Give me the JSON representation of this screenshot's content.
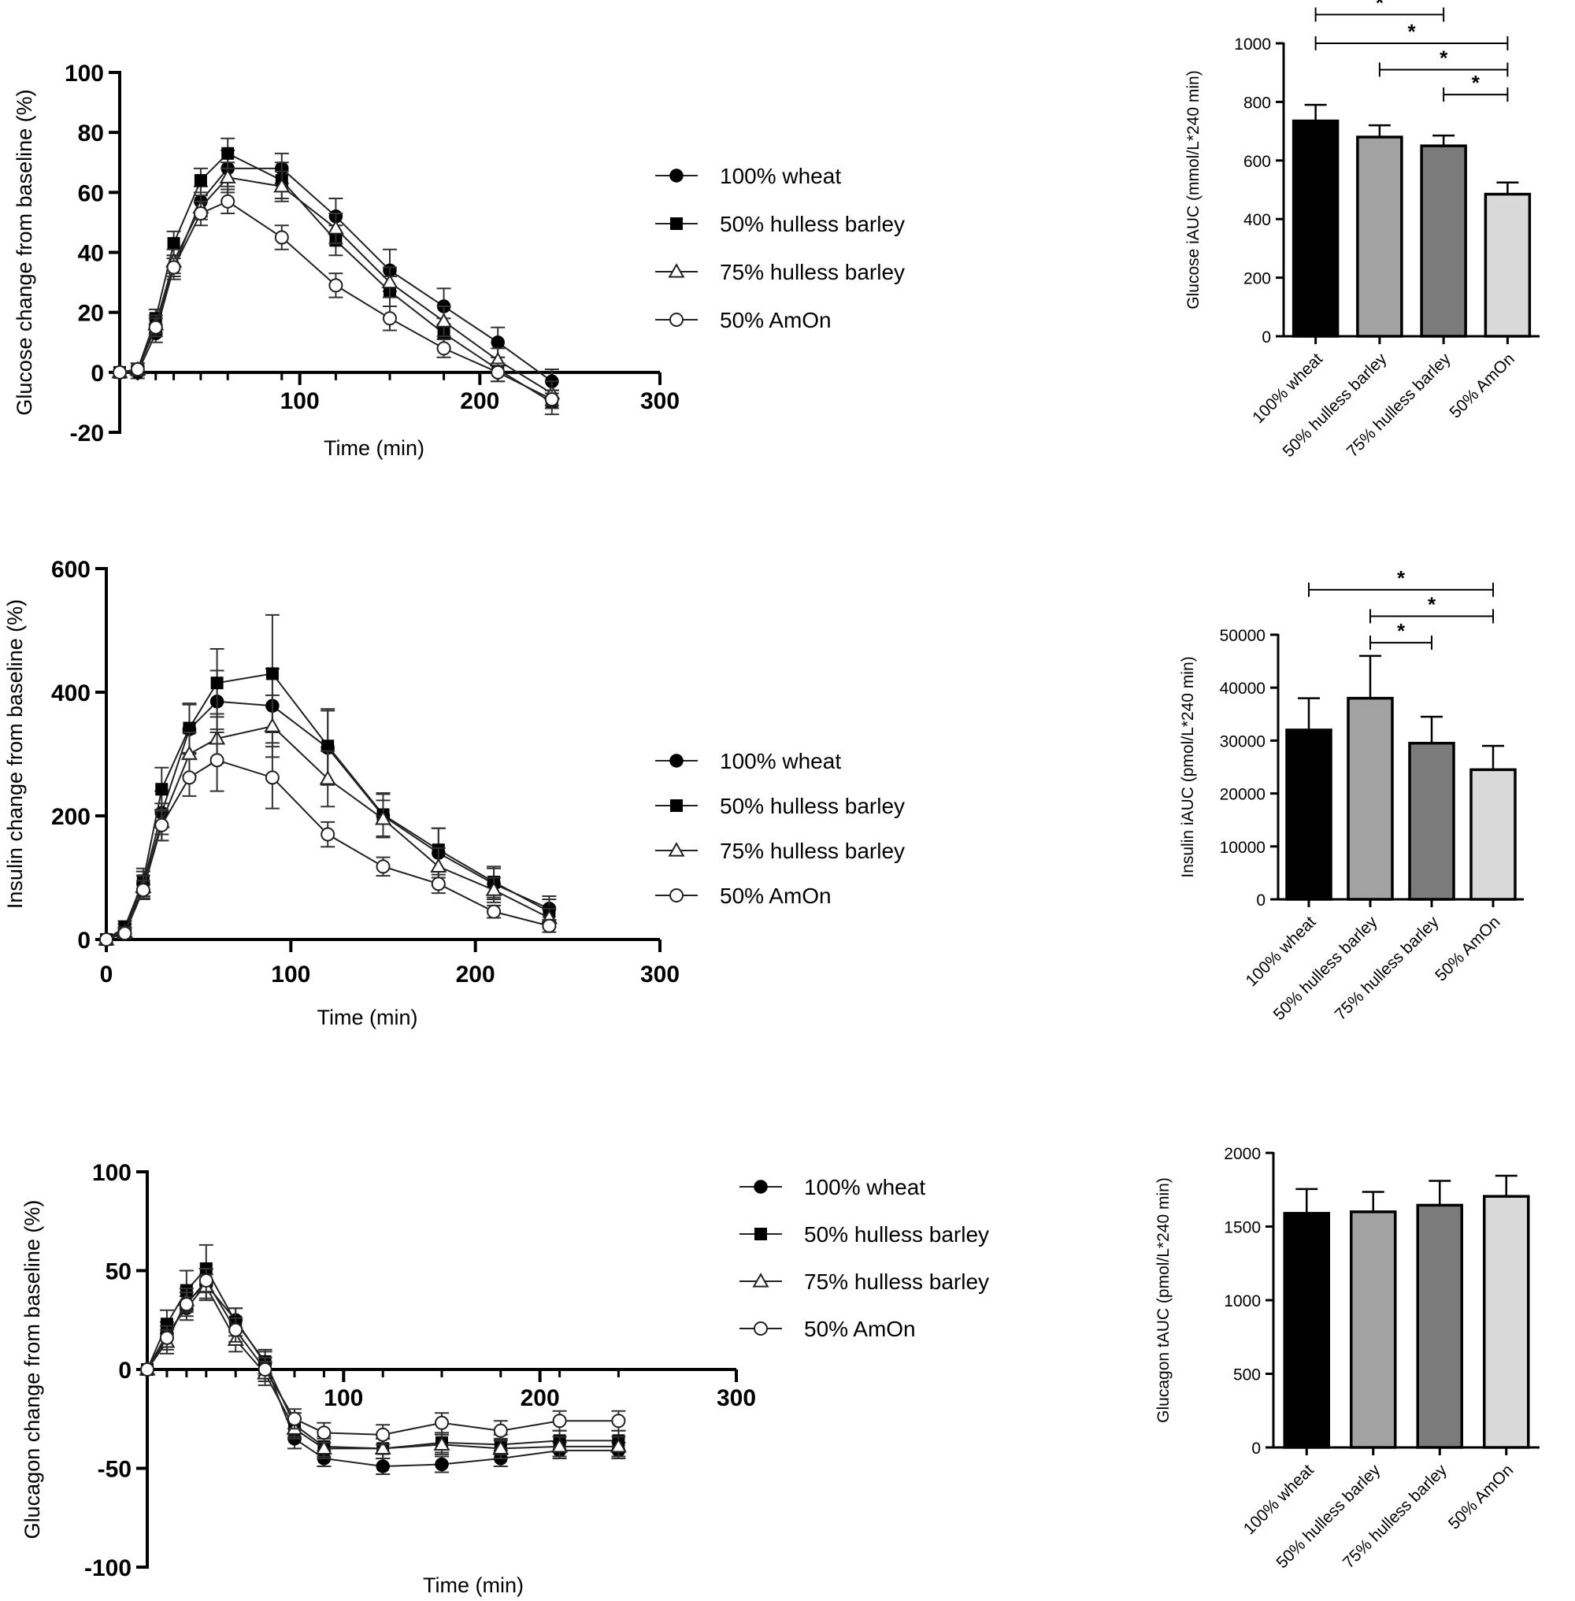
{
  "chart_data": [
    {
      "id": "glucose-line",
      "type": "line",
      "ylabel": "Glucose change from baseline (%)",
      "xlabel": "Time (min)",
      "xlim": [
        0,
        300
      ],
      "ylim": [
        -20,
        100
      ],
      "xticks": [
        100,
        200,
        300
      ],
      "xticks_labeled": [
        100,
        200,
        300
      ],
      "xminorticks": [
        10,
        20,
        30,
        45,
        60,
        90,
        120,
        150,
        180,
        210,
        240
      ],
      "yticks": [
        -20,
        0,
        20,
        40,
        60,
        80,
        100
      ],
      "x_axis_at": 0,
      "x": [
        0,
        10,
        20,
        30,
        45,
        60,
        90,
        120,
        150,
        180,
        210,
        240
      ],
      "series": [
        {
          "name": "100% wheat",
          "marker": "circle-filled",
          "values": [
            0,
            0,
            13,
            35,
            57,
            68,
            68,
            52,
            34,
            22,
            10,
            -3
          ],
          "errors": [
            0,
            2,
            3,
            4,
            5,
            6,
            5,
            6,
            7,
            6,
            5,
            4
          ]
        },
        {
          "name": "50% hulless barley",
          "marker": "square-filled",
          "values": [
            0,
            1,
            18,
            43,
            64,
            73,
            64,
            44,
            27,
            13,
            1,
            -10
          ],
          "errors": [
            0,
            2,
            3,
            4,
            4,
            5,
            6,
            5,
            5,
            5,
            4,
            4
          ]
        },
        {
          "name": "75% hulless barley",
          "marker": "triangle-open",
          "values": [
            0,
            1,
            16,
            37,
            55,
            65,
            62,
            48,
            30,
            17,
            4,
            -7
          ],
          "errors": [
            0,
            2,
            3,
            4,
            4,
            5,
            5,
            5,
            5,
            5,
            4,
            4
          ]
        },
        {
          "name": "50% AmOn",
          "marker": "circle-open",
          "values": [
            0,
            1,
            15,
            35,
            53,
            57,
            45,
            29,
            18,
            8,
            0,
            -9
          ],
          "errors": [
            0,
            2,
            3,
            3,
            4,
            4,
            4,
            4,
            4,
            3,
            3,
            3
          ]
        }
      ]
    },
    {
      "id": "glucose-bar",
      "type": "bar",
      "ylabel": "Glucose iAUC (mmol/L*240 min)",
      "categories": [
        "100% wheat",
        "50% hulless barley",
        "75% hulless barley",
        "50% AmOn"
      ],
      "values": [
        735,
        680,
        650,
        485
      ],
      "errors": [
        55,
        40,
        35,
        40
      ],
      "colors": [
        "#000000",
        "#a2a2a2",
        "#7b7b7b",
        "#d9d9d9"
      ],
      "ylim": [
        0,
        1000
      ],
      "yticks": [
        0,
        200,
        400,
        600,
        800,
        1000
      ],
      "significance": [
        {
          "from": 0,
          "to": 2,
          "label": "*",
          "level": 1098
        },
        {
          "from": 0,
          "to": 3,
          "label": "*",
          "level": 1000
        },
        {
          "from": 1,
          "to": 3,
          "label": "*",
          "level": 910
        },
        {
          "from": 2,
          "to": 3,
          "label": "*",
          "level": 825
        }
      ]
    },
    {
      "id": "insulin-line",
      "type": "line",
      "ylabel": "Insulin change from baseline (%)",
      "xlabel": "Time (min)",
      "xlim": [
        0,
        300
      ],
      "ylim": [
        0,
        600
      ],
      "xticks": [
        0,
        100,
        200,
        300
      ],
      "xticks_labeled": [
        0,
        100,
        200,
        300
      ],
      "xminorticks": [],
      "yticks": [
        0,
        200,
        400,
        600
      ],
      "x_axis_at": 0,
      "x": [
        0,
        10,
        20,
        30,
        45,
        60,
        90,
        120,
        150,
        180,
        210,
        240
      ],
      "series": [
        {
          "name": "100% wheat",
          "marker": "circle-filled",
          "values": [
            0,
            15,
            90,
            205,
            340,
            385,
            378,
            310,
            200,
            140,
            90,
            50
          ],
          "errors": [
            0,
            10,
            20,
            35,
            40,
            50,
            60,
            60,
            35,
            40,
            25,
            20
          ]
        },
        {
          "name": "50% hulless barley",
          "marker": "square-filled",
          "values": [
            0,
            20,
            95,
            243,
            342,
            415,
            430,
            313,
            202,
            145,
            93,
            45
          ],
          "errors": [
            0,
            10,
            20,
            35,
            40,
            55,
            95,
            60,
            35,
            35,
            25,
            20
          ]
        },
        {
          "name": "75% hulless barley",
          "marker": "triangle-open",
          "values": [
            0,
            12,
            85,
            190,
            300,
            325,
            345,
            260,
            195,
            118,
            80,
            35
          ],
          "errors": [
            0,
            8,
            18,
            30,
            35,
            40,
            50,
            45,
            30,
            30,
            20,
            15
          ]
        },
        {
          "name": "50% AmOn",
          "marker": "circle-open",
          "values": [
            0,
            10,
            80,
            185,
            262,
            290,
            262,
            170,
            118,
            90,
            45,
            22
          ],
          "errors": [
            0,
            8,
            15,
            25,
            30,
            50,
            50,
            20,
            15,
            15,
            10,
            10
          ]
        }
      ]
    },
    {
      "id": "insulin-bar",
      "type": "bar",
      "ylabel": "Insulin iAUC (pmol/L*240 min)",
      "categories": [
        "100% wheat",
        "50% hulless barley",
        "75% hulless barley",
        "50% AmOn"
      ],
      "values": [
        32000,
        38000,
        29500,
        24500
      ],
      "errors": [
        6000,
        8000,
        5000,
        4500
      ],
      "colors": [
        "#000000",
        "#a2a2a2",
        "#7b7b7b",
        "#d9d9d9"
      ],
      "ylim": [
        0,
        50000
      ],
      "yticks": [
        0,
        10000,
        20000,
        30000,
        40000,
        50000
      ],
      "significance": [
        {
          "from": 0,
          "to": 3,
          "label": "*",
          "level": 58500
        },
        {
          "from": 1,
          "to": 3,
          "label": "*",
          "level": 53500
        },
        {
          "from": 1,
          "to": 2,
          "label": "*",
          "level": 48500
        }
      ]
    },
    {
      "id": "glucagon-line",
      "type": "line",
      "ylabel": "Glucagon change from baseline (%)",
      "xlabel": "Time (min)",
      "xlim": [
        0,
        300
      ],
      "ylim": [
        -100,
        100
      ],
      "xticks": [
        100,
        200,
        300
      ],
      "xticks_labeled": [
        100,
        200,
        300
      ],
      "xminorticks": [
        10,
        20,
        30,
        45,
        60,
        75,
        90,
        120,
        150,
        180,
        210,
        240
      ],
      "yticks": [
        -100,
        -50,
        0,
        50,
        100
      ],
      "x_axis_at": 0,
      "x": [
        0,
        10,
        20,
        30,
        45,
        60,
        75,
        90,
        120,
        150,
        180,
        210,
        240
      ],
      "series": [
        {
          "name": "100% wheat",
          "marker": "circle-filled",
          "values": [
            0,
            18,
            31,
            43,
            25,
            3,
            -35,
            -45,
            -49,
            -48,
            -45,
            -41,
            -41
          ],
          "errors": [
            0,
            6,
            6,
            8,
            6,
            6,
            5,
            4,
            4,
            4,
            4,
            4,
            4
          ]
        },
        {
          "name": "50% hulless barley",
          "marker": "square-filled",
          "values": [
            0,
            23,
            40,
            51,
            24,
            4,
            -28,
            -39,
            -40,
            -37,
            -38,
            -36,
            -36
          ],
          "errors": [
            0,
            7,
            10,
            12,
            7,
            6,
            6,
            5,
            5,
            5,
            5,
            5,
            5
          ]
        },
        {
          "name": "75% hulless barley",
          "marker": "triangle-open",
          "values": [
            0,
            14,
            35,
            42,
            15,
            -2,
            -30,
            -40,
            -40,
            -38,
            -40,
            -39,
            -39
          ],
          "errors": [
            0,
            6,
            6,
            6,
            6,
            6,
            5,
            5,
            5,
            5,
            5,
            5,
            5
          ]
        },
        {
          "name": "50% AmOn",
          "marker": "circle-open",
          "values": [
            0,
            16,
            33,
            45,
            20,
            0,
            -25,
            -32,
            -33,
            -27,
            -31,
            -26,
            -26
          ],
          "errors": [
            0,
            6,
            6,
            6,
            6,
            6,
            5,
            5,
            5,
            5,
            5,
            5,
            5
          ]
        }
      ]
    },
    {
      "id": "glucagon-bar",
      "type": "bar",
      "ylabel": "Glucagon tAUC (pmol/L*240 min)",
      "categories": [
        "100% wheat",
        "50% hulless barley",
        "75% hulless barley",
        "50% AmOn"
      ],
      "values": [
        1590,
        1600,
        1645,
        1705
      ],
      "errors": [
        165,
        135,
        165,
        140
      ],
      "colors": [
        "#000000",
        "#a2a2a2",
        "#7b7b7b",
        "#d9d9d9"
      ],
      "ylim": [
        0,
        2000
      ],
      "yticks": [
        0,
        500,
        1000,
        1500,
        2000
      ],
      "significance": []
    }
  ]
}
